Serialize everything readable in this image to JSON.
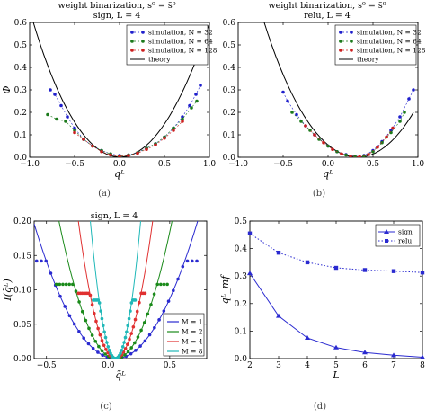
{
  "panels": {
    "a": {
      "label": "(a)",
      "title": "weight binarization, s⁰ = s̃⁰",
      "subtitle": "sign, L = 4"
    },
    "b": {
      "label": "(b)",
      "title": "weight binarization, s⁰ = s̃⁰",
      "subtitle": "relu, L = 4"
    },
    "c": {
      "label": "(c)",
      "title": "sign, L = 4"
    },
    "d": {
      "label": "(d)"
    }
  },
  "chart_data": [
    {
      "id": "a",
      "type": "scatter",
      "title": "weight binarization, s⁰ = s̃⁰",
      "subtitle": "sign, L = 4",
      "xlabel": "qᴸ",
      "ylabel": "Φ",
      "xlim": [
        -1.0,
        1.0
      ],
      "ylim": [
        0.0,
        0.6
      ],
      "xticks": [
        "−1.0",
        "−0.5",
        "0.0",
        "0.5",
        "1.0"
      ],
      "yticks": [
        "0.0",
        "0.1",
        "0.2",
        "0.3",
        "0.4",
        "0.5",
        "0.6"
      ],
      "legend_position": "top-right",
      "legend": [
        "simulation, N = 32",
        "simulation, N = 64",
        "simulation, N = 128",
        "theory"
      ],
      "series": [
        {
          "name": "simulation, N = 32",
          "color": "#1f1fcc",
          "points": [
            [
              -0.77,
              0.3
            ],
            [
              -0.72,
              0.28
            ],
            [
              -0.65,
              0.23
            ],
            [
              -0.58,
              0.18
            ],
            [
              -0.5,
              0.13
            ],
            [
              -0.4,
              0.08
            ],
            [
              -0.3,
              0.05
            ],
            [
              -0.2,
              0.03
            ],
            [
              -0.1,
              0.015
            ],
            [
              0.0,
              0.008
            ],
            [
              0.1,
              0.01
            ],
            [
              0.2,
              0.02
            ],
            [
              0.3,
              0.04
            ],
            [
              0.4,
              0.06
            ],
            [
              0.5,
              0.09
            ],
            [
              0.6,
              0.13
            ],
            [
              0.7,
              0.18
            ],
            [
              0.78,
              0.23
            ],
            [
              0.85,
              0.28
            ],
            [
              0.9,
              0.32
            ]
          ]
        },
        {
          "name": "simulation, N = 64",
          "color": "#1c7a1c",
          "points": [
            [
              -0.8,
              0.19
            ],
            [
              -0.7,
              0.17
            ],
            [
              -0.6,
              0.16
            ],
            [
              -0.5,
              0.12
            ],
            [
              -0.4,
              0.08
            ],
            [
              -0.3,
              0.05
            ],
            [
              -0.2,
              0.03
            ],
            [
              -0.1,
              0.015
            ],
            [
              0.0,
              0.005
            ],
            [
              0.1,
              0.01
            ],
            [
              0.2,
              0.02
            ],
            [
              0.3,
              0.04
            ],
            [
              0.4,
              0.06
            ],
            [
              0.5,
              0.09
            ],
            [
              0.6,
              0.13
            ],
            [
              0.7,
              0.17
            ],
            [
              0.8,
              0.22
            ],
            [
              0.86,
              0.25
            ]
          ]
        },
        {
          "name": "simulation, N = 128",
          "color": "#cc1f1f",
          "points": [
            [
              -0.5,
              0.11
            ],
            [
              -0.4,
              0.08
            ],
            [
              -0.3,
              0.05
            ],
            [
              -0.2,
              0.025
            ],
            [
              -0.1,
              0.01
            ],
            [
              0.0,
              0.004
            ],
            [
              0.1,
              0.008
            ],
            [
              0.2,
              0.018
            ],
            [
              0.3,
              0.035
            ],
            [
              0.4,
              0.055
            ],
            [
              0.5,
              0.085
            ],
            [
              0.6,
              0.12
            ],
            [
              0.7,
              0.16
            ]
          ]
        }
      ],
      "theory": {
        "name": "theory",
        "color": "#000000",
        "x_range": [
          -1.0,
          1.0
        ]
      }
    },
    {
      "id": "b",
      "type": "scatter",
      "title": "weight binarization, s⁰ = s̃⁰",
      "subtitle": "relu, L = 4",
      "xlabel": "qᴸ",
      "ylabel": "",
      "xlim": [
        -1.0,
        1.0
      ],
      "ylim": [
        0.0,
        0.6
      ],
      "xticks": [
        "−1.0",
        "−0.5",
        "0.0",
        "0.5",
        "1.0"
      ],
      "yticks": [
        "0.0",
        "0.1",
        "0.2",
        "0.3",
        "0.4",
        "0.5",
        "0.6"
      ],
      "legend_position": "top-right",
      "legend": [
        "simulation, N = 32",
        "simulation, N = 64",
        "simulation, N = 128",
        "theory"
      ],
      "series": [
        {
          "name": "simulation, N = 32",
          "color": "#1f1fcc",
          "points": [
            [
              -0.5,
              0.29
            ],
            [
              -0.45,
              0.25
            ],
            [
              -0.35,
              0.19
            ],
            [
              -0.25,
              0.14
            ],
            [
              -0.15,
              0.1
            ],
            [
              0.0,
              0.05
            ],
            [
              0.1,
              0.025
            ],
            [
              0.2,
              0.012
            ],
            [
              0.3,
              0.004
            ],
            [
              0.4,
              0.008
            ],
            [
              0.5,
              0.03
            ],
            [
              0.6,
              0.07
            ],
            [
              0.7,
              0.12
            ],
            [
              0.8,
              0.18
            ],
            [
              0.9,
              0.26
            ],
            [
              0.95,
              0.3
            ]
          ]
        },
        {
          "name": "simulation, N = 64",
          "color": "#1c7a1c",
          "points": [
            [
              -0.4,
              0.2
            ],
            [
              -0.3,
              0.16
            ],
            [
              -0.2,
              0.12
            ],
            [
              -0.1,
              0.08
            ],
            [
              0.0,
              0.05
            ],
            [
              0.1,
              0.025
            ],
            [
              0.2,
              0.01
            ],
            [
              0.3,
              0.003
            ],
            [
              0.4,
              0.006
            ],
            [
              0.5,
              0.025
            ],
            [
              0.6,
              0.065
            ],
            [
              0.7,
              0.11
            ],
            [
              0.8,
              0.16
            ],
            [
              0.85,
              0.2
            ]
          ]
        },
        {
          "name": "simulation, N = 128",
          "color": "#cc1f1f",
          "points": [
            [
              -0.25,
              0.14
            ],
            [
              -0.15,
              0.1
            ],
            [
              -0.05,
              0.065
            ],
            [
              0.05,
              0.035
            ],
            [
              0.15,
              0.015
            ],
            [
              0.25,
              0.005
            ],
            [
              0.35,
              0.002
            ],
            [
              0.45,
              0.012
            ],
            [
              0.55,
              0.045
            ],
            [
              0.65,
              0.09
            ],
            [
              0.72,
              0.13
            ]
          ]
        }
      ],
      "theory": {
        "name": "theory",
        "color": "#000000",
        "x_range": [
          -0.85,
          0.95
        ]
      }
    },
    {
      "id": "c",
      "type": "line",
      "title": "sign, L = 4",
      "xlabel": "q̃ᴸ",
      "ylabel": "I(q̃ᴸ)",
      "xlim": [
        -0.6,
        0.8
      ],
      "ylim": [
        0.0,
        0.2
      ],
      "xticks": [
        "−0.5",
        "0.0",
        "0.5"
      ],
      "yticks": [
        "0.00",
        "0.05",
        "0.10",
        "0.15",
        "0.20"
      ],
      "legend_position": "lower-right",
      "legend": [
        "M = 1",
        "M = 2",
        "M = 4",
        "M = 8"
      ],
      "series": [
        {
          "name": "M = 1",
          "color": "#2a2ad0",
          "curvature": 0.45,
          "center": 0.06,
          "plateau": 0.142,
          "plateau_left": -0.58,
          "plateau_right": 0.72
        },
        {
          "name": "M = 2",
          "color": "#1a8a1a",
          "curvature": 0.95,
          "center": 0.06,
          "plateau": 0.108,
          "plateau_left": -0.42,
          "plateau_right": 0.48
        },
        {
          "name": "M = 4",
          "color": "#e03030",
          "curvature": 2.2,
          "center": 0.06,
          "plateau": 0.095,
          "plateau_left": -0.24,
          "plateau_right": 0.3
        },
        {
          "name": "M = 8",
          "color": "#20b8b8",
          "curvature": 4.8,
          "center": 0.06,
          "plateau": 0.085,
          "plateau_left": -0.12,
          "plateau_right": 0.22
        }
      ]
    },
    {
      "id": "d",
      "type": "line",
      "xlabel": "L",
      "ylabel": "qᴸ_mf",
      "xlim": [
        2,
        8
      ],
      "ylim": [
        0.0,
        0.5
      ],
      "xticks": [
        "2",
        "3",
        "4",
        "5",
        "6",
        "7",
        "8"
      ],
      "yticks": [
        "0.0",
        "0.1",
        "0.2",
        "0.3",
        "0.4",
        "0.5"
      ],
      "legend_position": "top-right",
      "categories": [
        2,
        3,
        4,
        5,
        6,
        7,
        8
      ],
      "series": [
        {
          "name": "sign",
          "color": "#2a2ad0",
          "style": "solid",
          "marker": "triangle",
          "values": [
            0.31,
            0.155,
            0.075,
            0.04,
            0.022,
            0.012,
            0.005
          ]
        },
        {
          "name": "relu",
          "color": "#2a2ad0",
          "style": "dotted",
          "marker": "square",
          "values": [
            0.455,
            0.385,
            0.35,
            0.33,
            0.322,
            0.318,
            0.313
          ]
        }
      ]
    }
  ]
}
